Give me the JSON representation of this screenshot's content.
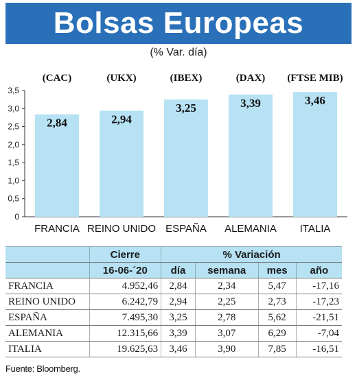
{
  "title": "Bolsas Europeas",
  "subtitle": "(% Var. día)",
  "chart_data": {
    "type": "bar",
    "categories": [
      "FRANCIA",
      "REINO UNIDO",
      "ESPAÑA",
      "ALEMANIA",
      "ITALIA"
    ],
    "index_labels": [
      "(CAC)",
      "(UKX)",
      "(IBEX)",
      "(DAX)",
      "(FTSE MIB)"
    ],
    "values": [
      2.84,
      2.94,
      3.25,
      3.39,
      3.46
    ],
    "value_labels": [
      "2,84",
      "2,94",
      "3,25",
      "3,39",
      "3,46"
    ],
    "ylim": [
      0,
      3.5
    ],
    "yticks": [
      0,
      0.5,
      1.0,
      1.5,
      2.0,
      2.5,
      3.0,
      3.5
    ],
    "ytick_labels": [
      "0",
      "0,5",
      "1,0",
      "1,5",
      "2,0",
      "2,5",
      "3,0",
      "3,5"
    ],
    "grid": false,
    "bar_color": "#b6e2f4"
  },
  "table": {
    "header_cierre": "Cierre",
    "header_variacion": "% Variación",
    "header_date": "16-06-´20",
    "col_dia": "día",
    "col_semana": "semana",
    "col_mes": "mes",
    "col_ano": "año",
    "rows": [
      {
        "name": "FRANCIA",
        "cierre": "4.952,46",
        "dia": "2,84",
        "semana": "2,34",
        "mes": "5,47",
        "ano": "-17,16"
      },
      {
        "name": "REINO UNIDO",
        "cierre": "6.242,79",
        "dia": "2,94",
        "semana": "2,25",
        "mes": "2,73",
        "ano": "-17,23"
      },
      {
        "name": "ESPAÑA",
        "cierre": "7.495,30",
        "dia": "3,25",
        "semana": "2,78",
        "mes": "5,62",
        "ano": "-21,51"
      },
      {
        "name": "ALEMANIA",
        "cierre": "12.315,66",
        "dia": "3,39",
        "semana": "3,07",
        "mes": "6,29",
        "ano": "-7,04"
      },
      {
        "name": "ITALIA",
        "cierre": "19.625,63",
        "dia": "3,46",
        "semana": "3,90",
        "mes": "7,85",
        "ano": "-16,51"
      }
    ]
  },
  "source": "Fuente: Bloomberg.",
  "colors": {
    "banner": "#2a70b8",
    "bar": "#b6e2f4",
    "table_header": "#b6e2f4"
  }
}
